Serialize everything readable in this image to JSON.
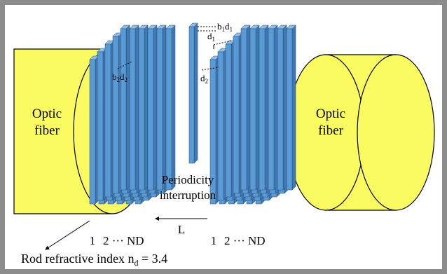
{
  "diagram": {
    "left_fiber_label": [
      "Optic",
      "fiber"
    ],
    "right_fiber_label": [
      "Optic",
      "fiber"
    ],
    "gap_label": [
      "Periodicity",
      "interruption"
    ],
    "length_label": "L",
    "rod_index_left": [
      "1",
      "2 ··· ND"
    ],
    "rod_index_right": [
      "1",
      "2 ··· ND"
    ],
    "rod_refractive_index": {
      "text": "Rod refractive index n",
      "sub": "d",
      "tail": " = 3.4"
    },
    "dim_b1d1": {
      "b": "b",
      "b_sub": "1",
      "d": "d",
      "d_sub": "1"
    },
    "dim_d1": {
      "d": "d",
      "d_sub": "1"
    },
    "dim_b2d2": {
      "b": "b",
      "b_sub": "2",
      "d": "d",
      "d_sub": "2"
    },
    "dim_d2": {
      "d": "d",
      "d_sub": "2"
    },
    "colors": {
      "fiber": "#fafa61",
      "rod_front": "#5b9bd5",
      "rod_side": "#3f79b3",
      "rod_top": "#8fbde6",
      "frame": "#8c8c8c"
    }
  }
}
